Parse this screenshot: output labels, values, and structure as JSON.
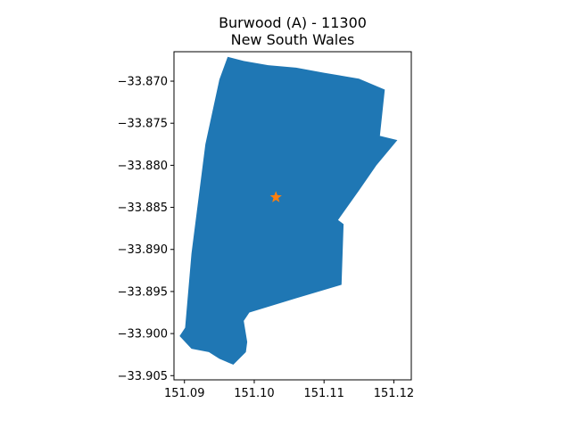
{
  "map": {
    "title": "Burwood (A) - 11300",
    "subtitle": "New South Wales",
    "x_ticks": [
      "151.09",
      "151.10",
      "151.11",
      "151.12"
    ],
    "y_ticks": [
      "−33.870",
      "−33.875",
      "−33.880",
      "−33.885",
      "−33.890",
      "−33.895",
      "−33.900",
      "−33.905"
    ],
    "fill_color": "#1f77b4",
    "marker_color": "#ff7f0e",
    "marker_symbol": "star"
  },
  "chart_data": {
    "type": "map",
    "title": "Burwood (A) - 11300\nNew South Wales",
    "xlim": [
      151.0885,
      151.1225
    ],
    "ylim": [
      -33.9055,
      -33.8665
    ],
    "marker": {
      "lon": 151.1031,
      "lat": -33.8838
    },
    "region_outline": [
      [
        151.0962,
        -33.8671
      ],
      [
        151.0985,
        -33.8676
      ],
      [
        151.102,
        -33.8681
      ],
      [
        151.106,
        -33.8684
      ],
      [
        151.11,
        -33.869
      ],
      [
        151.115,
        -33.8697
      ],
      [
        151.1187,
        -33.871
      ],
      [
        151.118,
        -33.8765
      ],
      [
        151.1205,
        -33.877
      ],
      [
        151.1175,
        -33.88
      ],
      [
        151.115,
        -33.883
      ],
      [
        151.112,
        -33.8865
      ],
      [
        151.1128,
        -33.887
      ],
      [
        151.1125,
        -33.8942
      ],
      [
        151.106,
        -33.8958
      ],
      [
        151.0993,
        -33.8975
      ],
      [
        151.0985,
        -33.8985
      ],
      [
        151.099,
        -33.901
      ],
      [
        151.0988,
        -33.9022
      ],
      [
        151.097,
        -33.9037
      ],
      [
        151.095,
        -33.903
      ],
      [
        151.0935,
        -33.9022
      ],
      [
        151.091,
        -33.9018
      ],
      [
        151.0893,
        -33.9003
      ],
      [
        151.0901,
        -33.8993
      ],
      [
        151.091,
        -33.8905
      ],
      [
        151.093,
        -33.8775
      ],
      [
        151.095,
        -33.8698
      ]
    ]
  }
}
